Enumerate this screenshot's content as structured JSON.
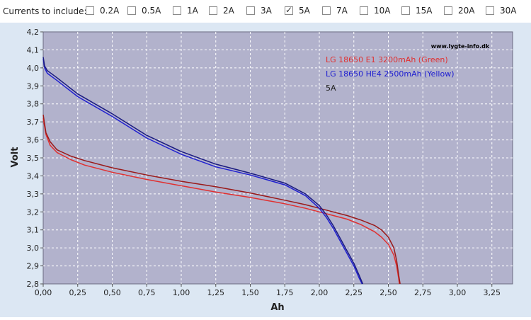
{
  "filter": {
    "label": "Currents to include:",
    "options": [
      {
        "label": "0.2A",
        "checked": false
      },
      {
        "label": "0.5A",
        "checked": false
      },
      {
        "label": "1A",
        "checked": false
      },
      {
        "label": "2A",
        "checked": false
      },
      {
        "label": "3A",
        "checked": false
      },
      {
        "label": "5A",
        "checked": true
      },
      {
        "label": "7A",
        "checked": false
      },
      {
        "label": "10A",
        "checked": false
      },
      {
        "label": "15A",
        "checked": false
      },
      {
        "label": "20A",
        "checked": false
      },
      {
        "label": "30A",
        "checked": false
      }
    ]
  },
  "chart_data": {
    "type": "line",
    "title": "",
    "watermark": "www.lygte-info.dk",
    "xlabel": "Ah",
    "ylabel": "Volt",
    "xlim": [
      0,
      3.4
    ],
    "ylim": [
      2.8,
      4.2
    ],
    "x_ticks": [
      "0,00",
      "0,25",
      "0,50",
      "0,75",
      "1,00",
      "1,25",
      "1,50",
      "1,75",
      "2,00",
      "2,25",
      "2,50",
      "2,75",
      "3,00",
      "3,25"
    ],
    "y_ticks": [
      "2,8",
      "2,9",
      "3,0",
      "3,1",
      "3,2",
      "3,3",
      "3,4",
      "3,5",
      "3,6",
      "3,7",
      "3,8",
      "3,9",
      "4,0",
      "4,1",
      "4,2"
    ],
    "grid": true,
    "legend": [
      {
        "text": "LG 18650 E1 3200mAh (Green)",
        "color": "#e03030"
      },
      {
        "text": "LG 18650 HE4 2500mAh (Yellow)",
        "color": "#2020d0"
      },
      {
        "text": "5A",
        "color": "#222222"
      }
    ],
    "series": [
      {
        "color": "#e03030",
        "values": [
          [
            0.0,
            3.72
          ],
          [
            0.02,
            3.63
          ],
          [
            0.05,
            3.57
          ],
          [
            0.1,
            3.53
          ],
          [
            0.2,
            3.49
          ],
          [
            0.3,
            3.46
          ],
          [
            0.5,
            3.42
          ],
          [
            0.75,
            3.38
          ],
          [
            1.0,
            3.345
          ],
          [
            1.25,
            3.31
          ],
          [
            1.5,
            3.28
          ],
          [
            1.75,
            3.245
          ],
          [
            1.9,
            3.22
          ],
          [
            2.0,
            3.2
          ],
          [
            2.1,
            3.18
          ],
          [
            2.2,
            3.16
          ],
          [
            2.3,
            3.13
          ],
          [
            2.4,
            3.09
          ],
          [
            2.45,
            3.06
          ],
          [
            2.5,
            3.02
          ],
          [
            2.54,
            2.96
          ],
          [
            2.56,
            2.9
          ],
          [
            2.575,
            2.83
          ],
          [
            2.58,
            2.8
          ]
        ]
      },
      {
        "color": "#9a1a1a",
        "values": [
          [
            0.0,
            3.74
          ],
          [
            0.02,
            3.64
          ],
          [
            0.05,
            3.59
          ],
          [
            0.1,
            3.545
          ],
          [
            0.2,
            3.51
          ],
          [
            0.3,
            3.485
          ],
          [
            0.5,
            3.445
          ],
          [
            0.75,
            3.405
          ],
          [
            1.0,
            3.37
          ],
          [
            1.25,
            3.34
          ],
          [
            1.5,
            3.305
          ],
          [
            1.75,
            3.265
          ],
          [
            1.9,
            3.24
          ],
          [
            2.0,
            3.22
          ],
          [
            2.1,
            3.2
          ],
          [
            2.2,
            3.18
          ],
          [
            2.3,
            3.155
          ],
          [
            2.4,
            3.125
          ],
          [
            2.45,
            3.1
          ],
          [
            2.5,
            3.06
          ],
          [
            2.54,
            3.0
          ],
          [
            2.56,
            2.93
          ],
          [
            2.575,
            2.85
          ],
          [
            2.585,
            2.8
          ]
        ]
      },
      {
        "color": "#2020d0",
        "values": [
          [
            0.0,
            4.05
          ],
          [
            0.01,
            4.0
          ],
          [
            0.03,
            3.97
          ],
          [
            0.1,
            3.93
          ],
          [
            0.25,
            3.84
          ],
          [
            0.5,
            3.73
          ],
          [
            0.75,
            3.61
          ],
          [
            1.0,
            3.52
          ],
          [
            1.25,
            3.45
          ],
          [
            1.5,
            3.405
          ],
          [
            1.75,
            3.35
          ],
          [
            1.9,
            3.29
          ],
          [
            2.0,
            3.22
          ],
          [
            2.05,
            3.17
          ],
          [
            2.1,
            3.11
          ],
          [
            2.15,
            3.04
          ],
          [
            2.2,
            2.97
          ],
          [
            2.25,
            2.9
          ],
          [
            2.29,
            2.83
          ],
          [
            2.31,
            2.8
          ]
        ]
      },
      {
        "color": "#1a1a80",
        "values": [
          [
            0.0,
            4.06
          ],
          [
            0.01,
            4.01
          ],
          [
            0.03,
            3.985
          ],
          [
            0.1,
            3.945
          ],
          [
            0.25,
            3.855
          ],
          [
            0.5,
            3.745
          ],
          [
            0.75,
            3.625
          ],
          [
            1.0,
            3.535
          ],
          [
            1.25,
            3.465
          ],
          [
            1.5,
            3.415
          ],
          [
            1.75,
            3.36
          ],
          [
            1.9,
            3.3
          ],
          [
            2.0,
            3.235
          ],
          [
            2.05,
            3.185
          ],
          [
            2.1,
            3.125
          ],
          [
            2.15,
            3.055
          ],
          [
            2.2,
            2.985
          ],
          [
            2.25,
            2.915
          ],
          [
            2.29,
            2.845
          ],
          [
            2.315,
            2.8
          ]
        ]
      }
    ]
  }
}
